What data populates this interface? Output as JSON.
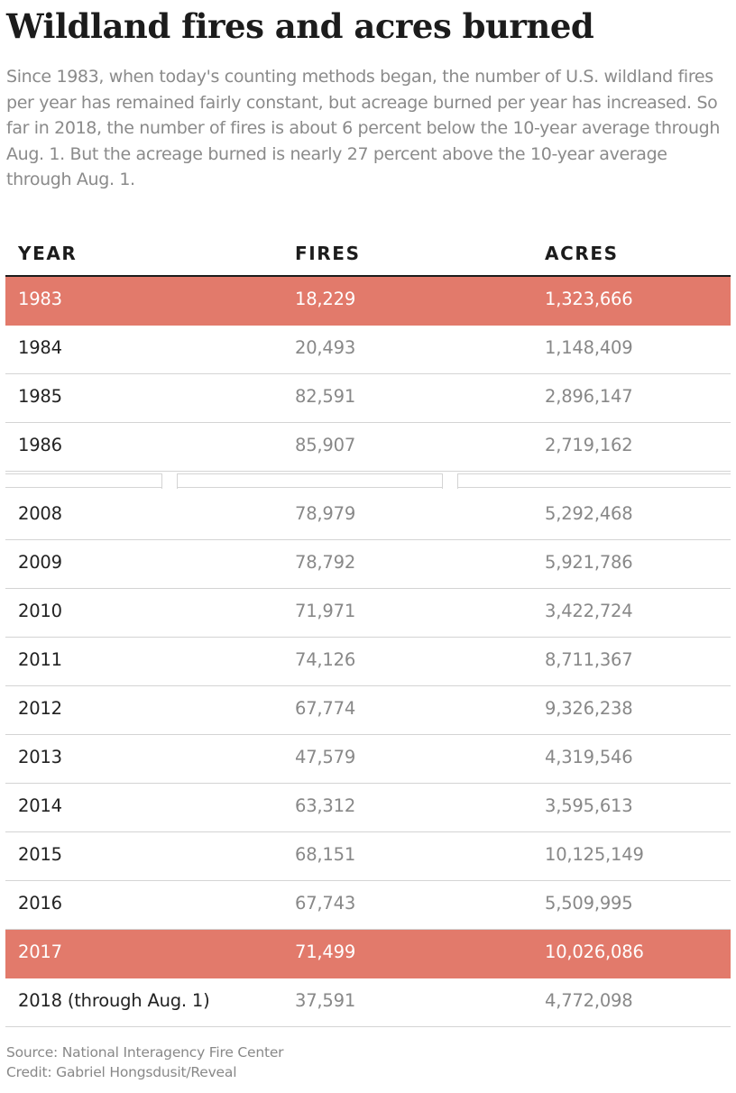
{
  "title": "Wildland fires and acres burned",
  "subtitle": "Since 1983, when today's counting methods began, the number of U.S. wildland fires per year has remained fairly constant, but acreage burned per year has increased.  So far in 2018, the number of fires is about 6 percent below the 10-year average through Aug. 1. But the acreage burned is nearly 27 percent above the 10-year average through Aug. 1.",
  "highlight_color": "#e27a6b",
  "chart_data": {
    "type": "table",
    "columns": [
      "YEAR",
      "FIRES",
      "ACRES"
    ],
    "rows_top": [
      {
        "year": "1983",
        "fires": "18,229",
        "acres": "1,323,666",
        "highlight": true
      },
      {
        "year": "1984",
        "fires": "20,493",
        "acres": "1,148,409",
        "highlight": false
      },
      {
        "year": "1985",
        "fires": "82,591",
        "acres": "2,896,147",
        "highlight": false
      },
      {
        "year": "1986",
        "fires": "85,907",
        "acres": "2,719,162",
        "highlight": false
      }
    ],
    "rows_bottom": [
      {
        "year": "2008",
        "fires": "78,979",
        "acres": "5,292,468",
        "highlight": false
      },
      {
        "year": "2009",
        "fires": "78,792",
        "acres": "5,921,786",
        "highlight": false
      },
      {
        "year": "2010",
        "fires": "71,971",
        "acres": "3,422,724",
        "highlight": false
      },
      {
        "year": "2011",
        "fires": "74,126",
        "acres": "8,711,367",
        "highlight": false
      },
      {
        "year": "2012",
        "fires": "67,774",
        "acres": "9,326,238",
        "highlight": false
      },
      {
        "year": "2013",
        "fires": "47,579",
        "acres": "4,319,546",
        "highlight": false
      },
      {
        "year": "2014",
        "fires": "63,312",
        "acres": "3,595,613",
        "highlight": false
      },
      {
        "year": "2015",
        "fires": "68,151",
        "acres": "10,125,149",
        "highlight": false
      },
      {
        "year": "2016",
        "fires": "67,743",
        "acres": "5,509,995",
        "highlight": false
      },
      {
        "year": "2017",
        "fires": "71,499",
        "acres": "10,026,086",
        "highlight": true
      },
      {
        "year": "2018 (through Aug. 1)",
        "fires": "37,591",
        "acres": "4,772,098",
        "highlight": false
      }
    ]
  },
  "footer": {
    "source": "Source: National Interagency Fire Center",
    "credit": "Credit: Gabriel Hongsdusit/Reveal"
  }
}
